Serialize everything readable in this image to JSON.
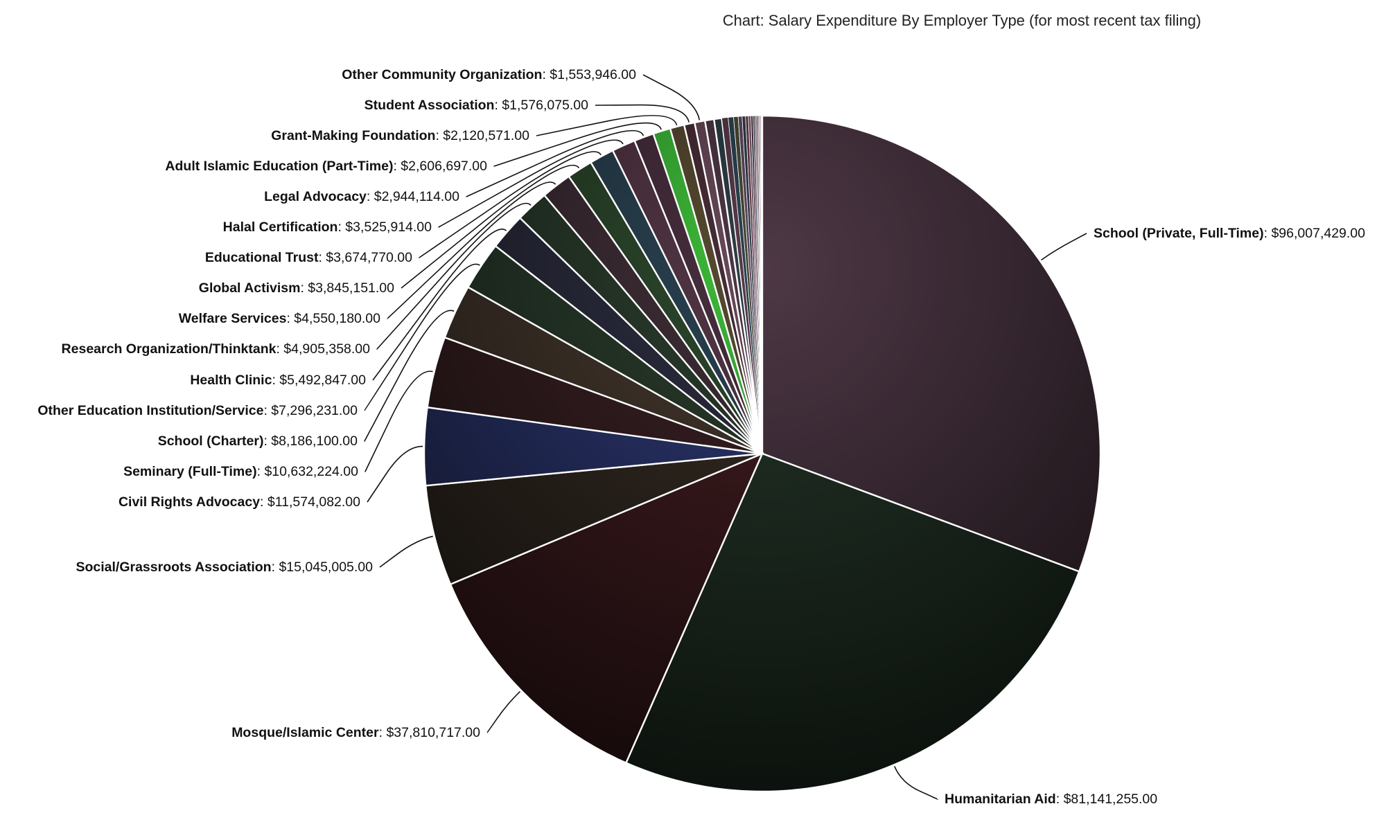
{
  "chart_data": {
    "type": "pie",
    "title": "Chart: Salary Expenditure By Employer Type (for most recent tax filing)",
    "start_angle_deg": 0,
    "direction": "clockwise",
    "legend": "none",
    "slices": [
      {
        "label": "School (Private, Full-Time)",
        "value": 96007429.0,
        "value_text": "$96,007,429.00",
        "color": "#4e3846",
        "labelled": true
      },
      {
        "label": "Humanitarian Aid",
        "value": 81141255.0,
        "value_text": "$81,141,255.00",
        "color": "#26372a",
        "labelled": true
      },
      {
        "label": "Mosque/Islamic Center",
        "value": 37810717.0,
        "value_text": "$37,810,717.00",
        "color": "#451e22",
        "labelled": true
      },
      {
        "label": "Social/Grassroots Association",
        "value": 15045005.0,
        "value_text": "$15,045,005.00",
        "color": "#382e25",
        "labelled": true
      },
      {
        "label": "Civil Rights Advocacy",
        "value": 11574082.0,
        "value_text": "$11,574,082.00",
        "color": "#2f3a78",
        "labelled": true
      },
      {
        "label": "Seminary (Full-Time)",
        "value": 10632224.0,
        "value_text": "$10,632,224.00",
        "color": "#3c2225",
        "labelled": true
      },
      {
        "label": "School (Charter)",
        "value": 8186100.0,
        "value_text": "$8,186,100.00",
        "color": "#473a2f",
        "labelled": true
      },
      {
        "label": "Other Education Institution/Service",
        "value": 7296231.0,
        "value_text": "$7,296,231.00",
        "color": "#2c3e2e",
        "labelled": true
      },
      {
        "label": "Health Clinic",
        "value": 5492847.0,
        "value_text": "$5,492,847.00",
        "color": "#2e2f42",
        "labelled": true
      },
      {
        "label": "Research Organization/Thinktank",
        "value": 4905358.0,
        "value_text": "$4,905,358.00",
        "color": "#2c3e2e",
        "labelled": true
      },
      {
        "label": "Welfare Services",
        "value": 4550180.0,
        "value_text": "$4,550,180.00",
        "color": "#413038",
        "labelled": true
      },
      {
        "label": "Global Activism",
        "value": 3845151.0,
        "value_text": "$3,845,151.00",
        "color": "#2e4a2e",
        "labelled": true
      },
      {
        "label": "Educational Trust",
        "value": 3674770.0,
        "value_text": "$3,674,770.00",
        "color": "#2c4454",
        "labelled": true
      },
      {
        "label": "Halal Certification",
        "value": 3525914.0,
        "value_text": "$3,525,914.00",
        "color": "#563848",
        "labelled": true
      },
      {
        "label": "Legal Advocacy",
        "value": 2944114.0,
        "value_text": "$2,944,114.00",
        "color": "#4a3040",
        "labelled": true
      },
      {
        "label": "Adult Islamic Education (Part-Time)",
        "value": 2606697.0,
        "value_text": "$2,606,697.00",
        "color": "#3fbf3a",
        "labelled": true
      },
      {
        "label": "Grant-Making Foundation",
        "value": 2120571.0,
        "value_text": "$2,120,571.00",
        "color": "#5a4c32",
        "labelled": true
      },
      {
        "label": "Student Association",
        "value": 1576075.0,
        "value_text": "$1,576,075.00",
        "color": "#4a2e38",
        "labelled": true
      },
      {
        "label": "Other Community Organization",
        "value": 1553946.0,
        "value_text": "$1,553,946.00",
        "color": "#6a4a5a",
        "labelled": true
      },
      {
        "label": "",
        "value": 1350000,
        "value_text": "",
        "color": "#4e3846",
        "labelled": false
      },
      {
        "label": "",
        "value": 1150000,
        "value_text": "",
        "color": "#2e3e48",
        "labelled": false
      },
      {
        "label": "",
        "value": 950000,
        "value_text": "",
        "color": "#5a3a4a",
        "labelled": false
      },
      {
        "label": "",
        "value": 800000,
        "value_text": "",
        "color": "#2c4454",
        "labelled": false
      },
      {
        "label": "",
        "value": 680000,
        "value_text": "",
        "color": "#4a4a36",
        "labelled": false
      },
      {
        "label": "",
        "value": 580000,
        "value_text": "",
        "color": "#5e4a64",
        "labelled": false
      },
      {
        "label": "",
        "value": 500000,
        "value_text": "",
        "color": "#2e3e48",
        "labelled": false
      },
      {
        "label": "",
        "value": 430000,
        "value_text": "",
        "color": "#6a3a50",
        "labelled": false
      },
      {
        "label": "",
        "value": 370000,
        "value_text": "",
        "color": "#7a5a6a",
        "labelled": false
      },
      {
        "label": "",
        "value": 320000,
        "value_text": "",
        "color": "#4a3040",
        "labelled": false
      },
      {
        "label": "",
        "value": 280000,
        "value_text": "",
        "color": "#3a4a5a",
        "labelled": false
      },
      {
        "label": "",
        "value": 240000,
        "value_text": "",
        "color": "#8a6a7a",
        "labelled": false
      },
      {
        "label": "",
        "value": 210000,
        "value_text": "",
        "color": "#5a3a4a",
        "labelled": false
      },
      {
        "label": "",
        "value": 180000,
        "value_text": "",
        "color": "#9a7a8a",
        "labelled": false
      },
      {
        "label": "",
        "value": 150000,
        "value_text": "",
        "color": "#6a4a5a",
        "labelled": false
      },
      {
        "label": "",
        "value": 125000,
        "value_text": "",
        "color": "#aa8a9a",
        "labelled": false
      },
      {
        "label": "",
        "value": 100000,
        "value_text": "",
        "color": "#7a5a6a",
        "labelled": false
      },
      {
        "label": "",
        "value": 80000,
        "value_text": "",
        "color": "#ba9aaa",
        "labelled": false
      }
    ]
  }
}
